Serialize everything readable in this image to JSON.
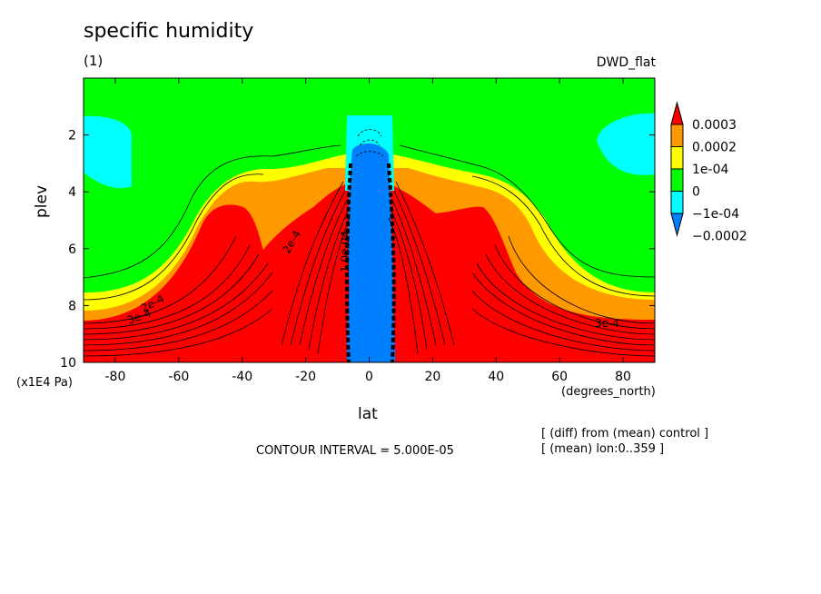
{
  "chart_data": {
    "type": "heatmap",
    "title": "specific humidity",
    "subtitle": "(1)",
    "dataset": "DWD_flat",
    "xlabel": "lat",
    "xunit": "(degrees_north)",
    "ylabel": "plev",
    "yunit": "(x1E4 Pa)",
    "xlim": [
      -90,
      90
    ],
    "ylim": [
      10,
      0
    ],
    "x_ticks": [
      -80,
      -60,
      -40,
      -20,
      0,
      20,
      40,
      60,
      80
    ],
    "y_ticks": [
      2,
      4,
      6,
      8,
      10
    ],
    "contour_interval": "CONTOUR INTERVAL = 5.000E-05",
    "notes": [
      "[ (diff) from (mean) control ]",
      "[ (mean) lon:0..359 ]"
    ],
    "colorbar": {
      "labels": [
        "0.0003",
        "0.0002",
        "1e-04",
        "0",
        "−1e-04",
        "−0.0002"
      ],
      "colors": {
        "red": "#ff0000",
        "orange": "#ff9900",
        "yellow": "#ffff00",
        "green": "#00ff00",
        "cyan": "#00ffff",
        "blue": "#0080ff"
      }
    },
    "contour_labels": [
      "3e-4",
      "2e-4",
      "2e-4",
      "3e-4",
      "1.0e-04"
    ]
  }
}
